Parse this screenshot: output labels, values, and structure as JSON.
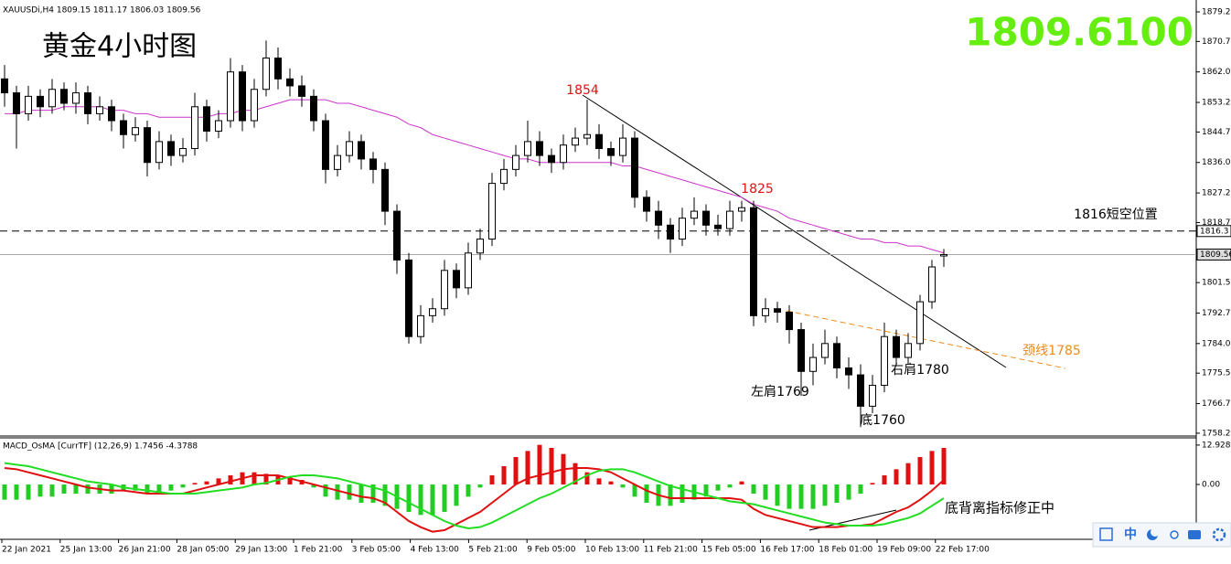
{
  "chart_data": {
    "type": "candlestick",
    "title": "黄金4小时图",
    "symbol_info": "XAUUSDi,H4  1809.15 1811.17 1806.03 1809.56",
    "price_display": "1809.6100",
    "ylim": [
      1757.7,
      1882.66
    ],
    "yticks": [
      1879.25,
      1870.75,
      {
        "value": 1862,
        "label": "1862.00"
      },
      1853.25,
      1844.75,
      {
        "value": 1836,
        "label": "1836.00"
      },
      1827.25,
      1818.75,
      {
        "value": 1801.5,
        "label": "1801.50"
      },
      1792.75,
      {
        "value": 1784,
        "label": "1784.00"
      },
      {
        "value": 1775.5,
        "label": "1775.50"
      },
      1766.75,
      1758.25
    ],
    "x_labels": [
      "22 Jan 2021",
      "25 Jan 13:00",
      "26 Jan 21:00",
      "28 Jan 05:00",
      "29 Jan 13:00",
      "1 Feb 21:00",
      "3 Feb 05:00",
      "4 Feb 13:00",
      "5 Feb 21:00",
      "9 Feb 05:00",
      "10 Feb 13:00",
      "11 Feb 21:00",
      "15 Feb 05:00",
      "16 Feb 17:00",
      "18 Feb 01:00",
      "19 Feb 09:00",
      "22 Feb 17:00"
    ],
    "open": [
      1860,
      1856,
      1850,
      1855,
      1852,
      1857,
      1853,
      1856,
      1850,
      1852,
      1848,
      1844,
      1846,
      1836,
      1842,
      1838,
      1840,
      1852,
      1845,
      1848,
      1862,
      1848,
      1857,
      1866,
      1860,
      1858,
      1855,
      1848,
      1834,
      1838,
      1842,
      1837,
      1834,
      1822,
      1808,
      1786,
      1792,
      1794,
      1805,
      1800,
      1810,
      1814,
      1830,
      1834,
      1838,
      1842,
      1838,
      1836,
      1841,
      1843,
      1844,
      1840,
      1838,
      1843,
      1826,
      1822,
      1818,
      1814,
      1820,
      1822,
      1818,
      1817,
      1822,
      1823,
      1792,
      1794,
      1793,
      1788,
      1776,
      1780,
      1784,
      1777,
      1775,
      1766,
      1772,
      1786,
      1780,
      1784,
      1796,
      1809.15
    ],
    "high": [
      1864,
      1858,
      1858,
      1857,
      1860,
      1859,
      1859,
      1858,
      1855,
      1854,
      1850,
      1849,
      1848,
      1845,
      1844,
      1843,
      1856,
      1854,
      1851,
      1866,
      1864,
      1860,
      1871,
      1869,
      1863,
      1861,
      1857,
      1850,
      1841,
      1845,
      1844,
      1839,
      1836,
      1824,
      1810,
      1795,
      1797,
      1808,
      1807,
      1813,
      1817,
      1833,
      1837,
      1841,
      1848,
      1845,
      1840,
      1844,
      1846,
      1854,
      1847,
      1842,
      1847,
      1845,
      1828,
      1825,
      1820,
      1823,
      1826,
      1824,
      1821,
      1825,
      1825,
      1825,
      1797,
      1796,
      1795,
      1790,
      1784,
      1788,
      1786,
      1780,
      1778,
      1775,
      1790,
      1788,
      1787,
      1798,
      1808,
      1811.17
    ],
    "low": [
      1852,
      1840,
      1848,
      1849,
      1850,
      1851,
      1850,
      1847,
      1848,
      1845,
      1840,
      1842,
      1832,
      1834,
      1835,
      1836,
      1838,
      1842,
      1843,
      1846,
      1845,
      1846,
      1855,
      1857,
      1855,
      1852,
      1845,
      1830,
      1832,
      1836,
      1834,
      1830,
      1818,
      1804,
      1784,
      1784,
      1790,
      1792,
      1797,
      1798,
      1808,
      1812,
      1828,
      1832,
      1836,
      1835,
      1833,
      1834,
      1839,
      1841,
      1837,
      1835,
      1836,
      1823,
      1819,
      1814,
      1810,
      1812,
      1818,
      1815,
      1815,
      1815,
      1819,
      1789,
      1790,
      1790,
      1784,
      1769,
      1772,
      1778,
      1774,
      1771,
      1760,
      1764,
      1770,
      1778,
      1778,
      1782,
      1794,
      1806.03
    ],
    "close": [
      1856,
      1850,
      1855,
      1852,
      1857,
      1853,
      1856,
      1850,
      1852,
      1848,
      1844,
      1846,
      1836,
      1842,
      1838,
      1840,
      1852,
      1845,
      1848,
      1862,
      1848,
      1857,
      1866,
      1860,
      1858,
      1855,
      1848,
      1834,
      1838,
      1842,
      1837,
      1834,
      1822,
      1808,
      1786,
      1792,
      1794,
      1805,
      1800,
      1810,
      1814,
      1830,
      1834,
      1838,
      1842,
      1838,
      1836,
      1841,
      1843,
      1844,
      1840,
      1838,
      1843,
      1826,
      1822,
      1818,
      1814,
      1820,
      1822,
      1818,
      1817,
      1822,
      1823,
      1792,
      1794,
      1793,
      1788,
      1776,
      1780,
      1784,
      1777,
      1775,
      1766,
      1772,
      1786,
      1780,
      1784,
      1796,
      1806,
      1809.56
    ],
    "ma": {
      "color": "#cc33cc",
      "values": [
        1850,
        1850,
        1851,
        1851,
        1851,
        1852,
        1852,
        1852,
        1852,
        1851,
        1851,
        1850,
        1850,
        1849,
        1849,
        1849,
        1849,
        1849,
        1850,
        1850,
        1851,
        1851,
        1852,
        1853,
        1854,
        1854,
        1854,
        1854,
        1853,
        1853,
        1852,
        1851,
        1850,
        1849,
        1847,
        1846,
        1844,
        1843,
        1842,
        1841,
        1840,
        1839,
        1838,
        1837,
        1837,
        1836,
        1836,
        1836,
        1836,
        1836,
        1836,
        1836,
        1835,
        1835,
        1834,
        1833,
        1832,
        1831,
        1830,
        1829,
        1828,
        1827,
        1826,
        1824,
        1823,
        1822,
        1820,
        1819,
        1818,
        1817,
        1816,
        1815,
        1814,
        1814,
        1813,
        1813,
        1812,
        1812,
        1811,
        1810
      ]
    },
    "hlines": [
      {
        "value": 1816.3,
        "dashed": true
      },
      {
        "value": 1809.56,
        "dashed": false
      }
    ],
    "annotations": [
      "1854",
      "1825",
      "1816短空位置",
      "颈线1785",
      "左肩1769",
      "右肩1780",
      "底1760",
      "底背离指标修正中"
    ],
    "macd": {
      "title": "MACD_OsMA [CurrTF] (12,26,9) 1.7456 -4.3788",
      "ylim": [
        -18,
        15.3
      ],
      "yticks": [
        12.9285,
        {
          "value": 0,
          "label": "0.00"
        }
      ],
      "histogram": [
        -5,
        -5,
        -5,
        -4,
        -4,
        -3,
        -3,
        -3,
        -3,
        -3,
        -2,
        -2,
        -3,
        -3,
        -2,
        -1,
        0.5,
        1,
        2,
        3,
        4,
        4,
        3.5,
        3,
        2.5,
        1.5,
        -1,
        -4,
        -5,
        -5,
        -6,
        -6,
        -7,
        -8,
        -9,
        -10,
        -10,
        -9,
        -7,
        -4,
        -1,
        3,
        6,
        9,
        11,
        13,
        12,
        10,
        7,
        4,
        2,
        1,
        -1,
        -4,
        -6,
        -7,
        -7,
        -6,
        -5,
        -4,
        -2,
        -1,
        1,
        -3,
        -5,
        -7,
        -8,
        -8,
        -8,
        -7,
        -6,
        -5,
        -3,
        0.5,
        3,
        5,
        7,
        9,
        11,
        12
      ],
      "up_color": "#e01010",
      "down_color": "#22cc22",
      "series": [
        {
          "color": "#e01010",
          "values": [
            5.4,
            5,
            4,
            3,
            2,
            1,
            0,
            -1,
            -1.5,
            -2,
            -2,
            -2.5,
            -3,
            -3,
            -3,
            -3,
            -2,
            -1,
            0,
            1,
            2,
            3,
            3,
            3,
            2,
            1,
            0,
            -1,
            -2,
            -3,
            -4,
            -4.5,
            -6,
            -9,
            -12,
            -14,
            -15.5,
            -15,
            -13,
            -11,
            -9,
            -6,
            -3,
            0,
            2,
            3,
            4,
            5,
            5.4,
            5.4,
            5,
            4,
            2,
            0,
            -2,
            -3.5,
            -4.5,
            -4.5,
            -4.5,
            -4.5,
            -4.5,
            -4.5,
            -5,
            -8,
            -10,
            -11,
            -12,
            -13,
            -14,
            -14,
            -14,
            -13.5,
            -13.5,
            -13,
            -11,
            -9,
            -7.5,
            -5,
            -2,
            1.5
          ]
        },
        {
          "color": "#22dd22",
          "values": [
            7,
            6.5,
            6,
            5,
            4,
            3,
            2,
            1,
            0.5,
            0,
            -1,
            -1.5,
            -2,
            -2.5,
            -3,
            -3,
            -3,
            -2.5,
            -2,
            -1.5,
            -1,
            0,
            0.5,
            1.5,
            2.5,
            3,
            3,
            2.5,
            2,
            1,
            0,
            -1,
            -2,
            -4,
            -6,
            -8,
            -10,
            -12,
            -13.5,
            -14.4,
            -14,
            -12.5,
            -10.5,
            -8.5,
            -6.5,
            -4.5,
            -3,
            -1,
            1,
            3,
            4.5,
            5,
            5,
            4,
            2.5,
            1,
            -0.5,
            -1.5,
            -2.5,
            -3.5,
            -4.5,
            -5.5,
            -6,
            -6.5,
            -7.5,
            -8.5,
            -9.5,
            -10.5,
            -11.5,
            -12.5,
            -13,
            -13.5,
            -13.5,
            -13.5,
            -13,
            -12,
            -11,
            -9.5,
            -7,
            -4.5
          ]
        }
      ]
    },
    "toolbar": "中"
  }
}
